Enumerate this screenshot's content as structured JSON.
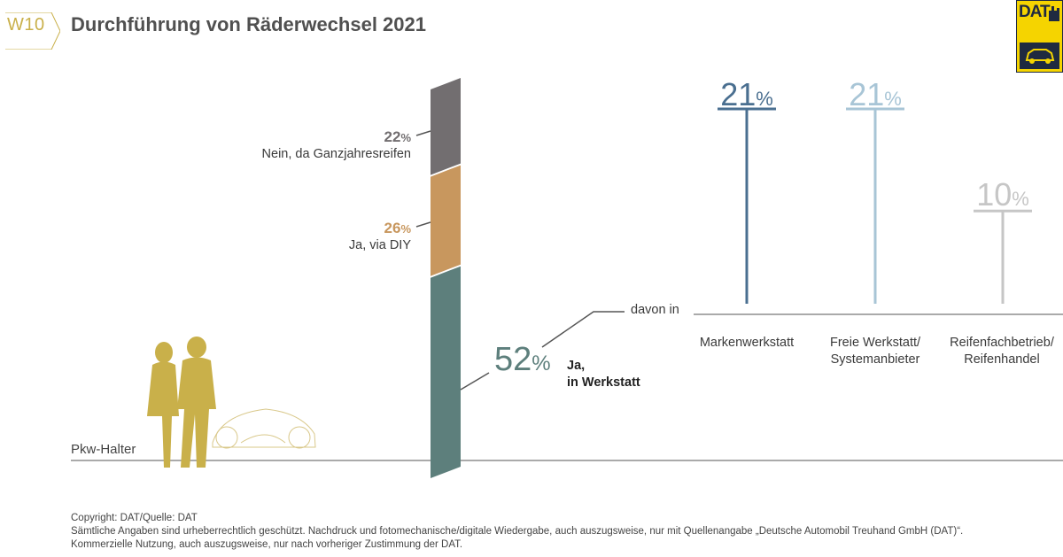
{
  "header": {
    "tag": "W10",
    "title": "Durchführung von Räderwechsel 2021"
  },
  "logo": {
    "text": "DAT"
  },
  "colors": {
    "nein": "#726e70",
    "diy": "#c8975e",
    "werkstatt": "#5d7f7c",
    "marken": "#4a6f90",
    "freie": "#a8c5d6",
    "reifen": "#c6c6c6",
    "gold": "#c9b04a",
    "line": "#555555"
  },
  "chart_data": [
    {
      "type": "bar",
      "label": "Pkw-Halter",
      "series": [
        {
          "name": "Nein, da Ganzjahresreifen",
          "value": 22,
          "value_text": "22%",
          "color": "#726e70"
        },
        {
          "name": "Ja, via DIY",
          "value": 26,
          "value_text": "26%",
          "color": "#c8975e"
        },
        {
          "name": "Ja, in Werkstatt",
          "value_text": "52%",
          "value": 52,
          "color": "#5d7f7c"
        }
      ],
      "unit": "%"
    },
    {
      "type": "bar",
      "label": "davon in",
      "categories": [
        "Markenwerkstatt",
        "Freie Werkstatt/ Systemanbieter",
        "Reifenfachbetrieb/ Reifenhandel"
      ],
      "values": [
        21,
        21,
        10
      ],
      "value_labels": [
        "21%",
        "21%",
        "10%"
      ],
      "colors": [
        "#4a6f90",
        "#a8c5d6",
        "#c6c6c6"
      ],
      "unit": "%"
    }
  ],
  "labels": {
    "nein_value": "22",
    "nein_text": "Nein, da Ganzjahresreifen",
    "diy_value": "26",
    "diy_text": "Ja, via DIY",
    "werk_value": "52",
    "werk_text_1": "Ja,",
    "werk_text_2": "in Werkstatt",
    "percent": "%",
    "davon": "davon in",
    "pkw": "Pkw-Halter",
    "cat1": "Markenwerkstatt",
    "cat2_1": "Freie Werkstatt/",
    "cat2_2": "Systemanbieter",
    "cat3_1": "Reifenfachbetrieb/",
    "cat3_2": "Reifenhandel",
    "v1": "21",
    "v2": "21",
    "v3": "10"
  },
  "footer": {
    "line1": "Copyright: DAT/Quelle: DAT",
    "line2": "Sämtliche Angaben sind urheberrechtlich geschützt. Nachdruck und fotomechanische/digitale Wiedergabe, auch auszugsweise, nur mit Quellenangabe „Deutsche Automobil Treuhand GmbH (DAT)“.",
    "line3": "Kommerzielle Nutzung, auch auszugsweise, nur nach vorheriger Zustimmung der DAT."
  }
}
